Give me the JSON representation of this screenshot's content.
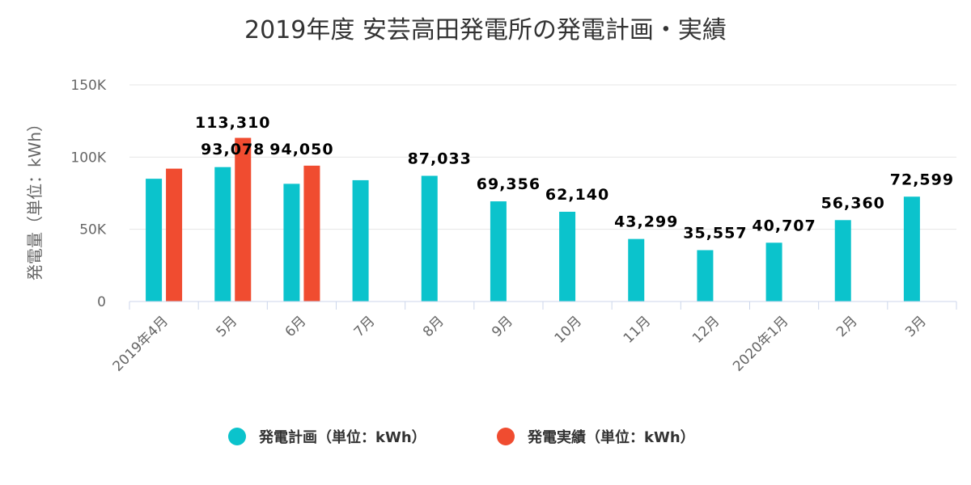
{
  "chart_data": {
    "type": "bar",
    "title": "2019年度 安芸高田発電所の発電計画・実績",
    "ylabel": "発電量（単位：kWh）",
    "xlabel": "",
    "ylim": [
      0,
      150000
    ],
    "yticks": [
      {
        "value": 0,
        "label": "0"
      },
      {
        "value": 50000,
        "label": "50K"
      },
      {
        "value": 100000,
        "label": "100K"
      },
      {
        "value": 150000,
        "label": "150K"
      }
    ],
    "categories": [
      "2019年4月",
      "5月",
      "6月",
      "7月",
      "8月",
      "9月",
      "10月",
      "11月",
      "12月",
      "2020年1月",
      "2月",
      "3月"
    ],
    "series": [
      {
        "name": "発電計画（単位：kWh）",
        "color": "#0bc3cc",
        "values": [
          85000,
          93078,
          81500,
          84000,
          87033,
          69356,
          62140,
          43299,
          35557,
          40707,
          56360,
          72599
        ],
        "labels": [
          "",
          "93,078",
          "",
          "",
          "87,033",
          "69,356",
          "62,140",
          "43,299",
          "35,557",
          "40,707",
          "56,360",
          "72,599"
        ]
      },
      {
        "name": "発電実績（単位：kWh）",
        "color": "#f04c30",
        "values": [
          92000,
          113310,
          94050,
          null,
          null,
          null,
          null,
          null,
          null,
          null,
          null,
          null
        ],
        "labels": [
          "",
          "113,310",
          "94,050",
          "",
          "",
          "",
          "",
          "",
          "",
          "",
          "",
          ""
        ]
      }
    ],
    "grid": true,
    "legend_position": "bottom-center"
  }
}
